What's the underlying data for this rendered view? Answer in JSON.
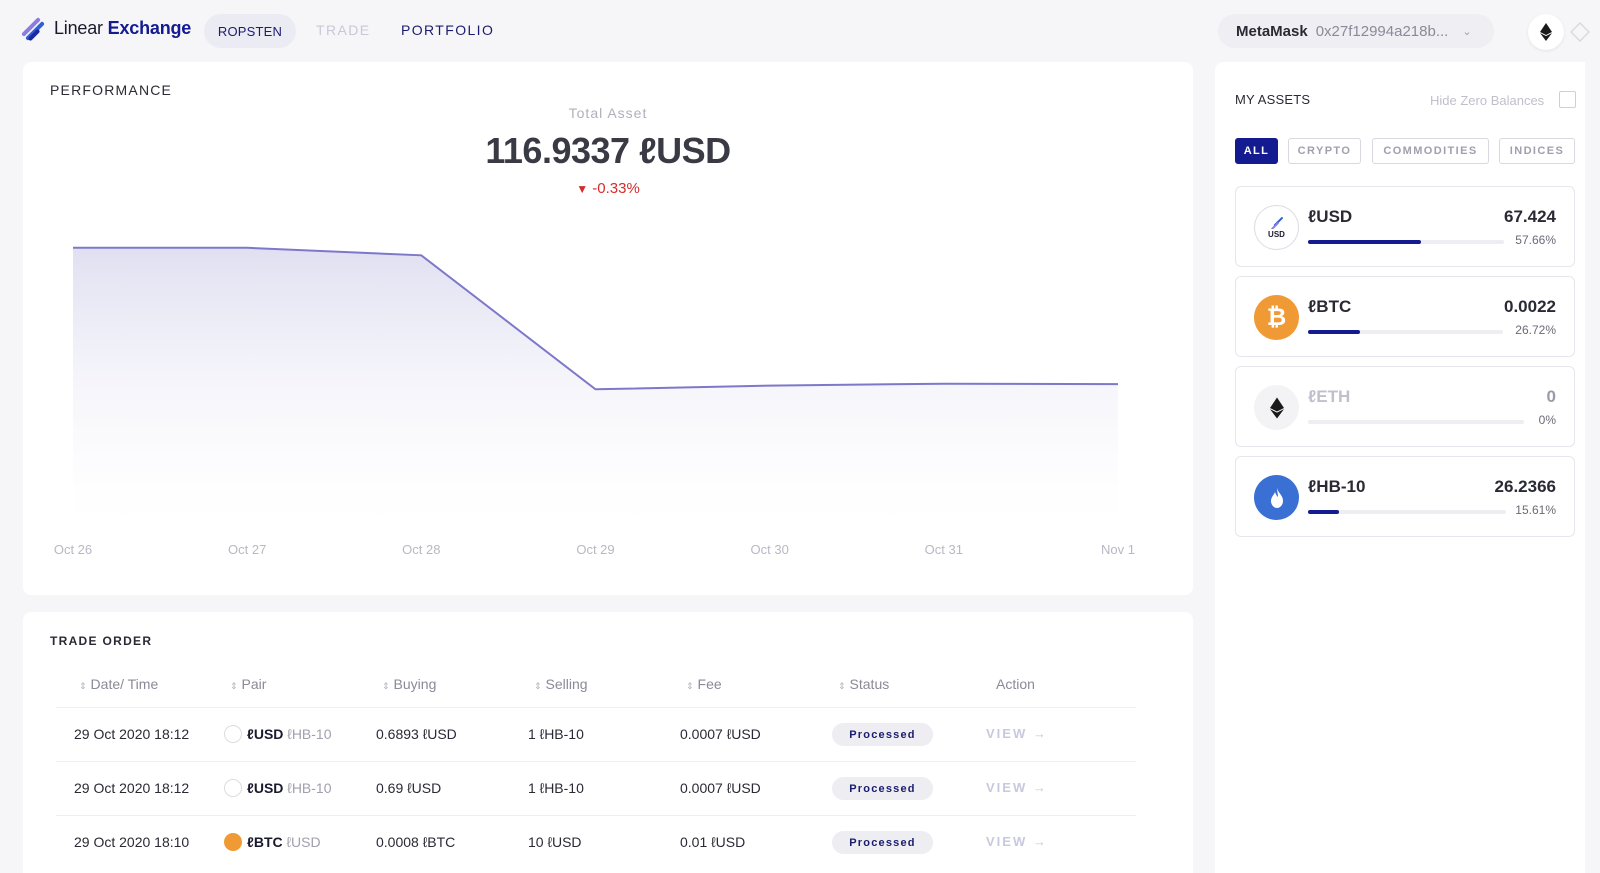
{
  "header": {
    "brand_light": "Linear",
    "brand_bold": "Exchange",
    "network": "ROPSTEN",
    "nav_trade": "TRADE",
    "nav_portfolio": "PORTFOLIO",
    "wallet_name": "MetaMask",
    "wallet_address": "0x27f12994a218b...",
    "network_icon": "ethereum-icon"
  },
  "performance": {
    "title": "PERFORMANCE",
    "total_label": "Total Asset",
    "total_value": "116.9337 ℓUSD",
    "change": "-0.33%",
    "change_icon": "triangle-down",
    "accent": "#7d78c9"
  },
  "chart_data": {
    "type": "area",
    "title": "",
    "xlabel": "",
    "ylabel": "",
    "categories": [
      "Oct 26",
      "Oct 27",
      "Oct 28",
      "Oct 29",
      "Oct 30",
      "Oct 31",
      "Nov 1"
    ],
    "series": [
      {
        "values": [
          117.3,
          117.3,
          117.28,
          116.92,
          116.93,
          116.935,
          116.934
        ]
      }
    ],
    "ylim": [
      116.55,
      117.45
    ],
    "grid": false,
    "y_axis_visible": false,
    "line_color": "#7d78c9"
  },
  "orders": {
    "title": "TRADE ORDER",
    "columns": [
      "Date/ Time",
      "Pair",
      "Buying",
      "Selling",
      "Fee",
      "Status",
      "Action"
    ],
    "rows": [
      {
        "date": "29 Oct 2020 18:12",
        "base": "ℓUSD",
        "quote": "ℓHB-10",
        "icon": "usd-icon",
        "buying": "0.6893 ℓUSD",
        "selling": "1 ℓHB-10",
        "fee": "0.0007 ℓUSD",
        "status": "Processed",
        "action": "VIEW"
      },
      {
        "date": "29 Oct 2020 18:12",
        "base": "ℓUSD",
        "quote": "ℓHB-10",
        "icon": "usd-icon",
        "buying": "0.69 ℓUSD",
        "selling": "1 ℓHB-10",
        "fee": "0.0007 ℓUSD",
        "status": "Processed",
        "action": "VIEW"
      },
      {
        "date": "29 Oct 2020 18:10",
        "base": "ℓBTC",
        "quote": "ℓUSD",
        "icon": "bitcoin-icon",
        "buying": "0.0008 ℓBTC",
        "selling": "10 ℓUSD",
        "fee": "0.01 ℓUSD",
        "status": "Processed",
        "action": "VIEW"
      }
    ]
  },
  "assets": {
    "title": "MY ASSETS",
    "hide_zero": "Hide Zero Balances",
    "filters": [
      "ALL",
      "CRYPTO",
      "COMMODITIES",
      "INDICES"
    ],
    "active_filter": "ALL",
    "usd_badge": "USD",
    "items": [
      {
        "name": "ℓUSD",
        "amount": "67.424",
        "percent": "57.66%",
        "share": 0.5766,
        "icon": "usd-icon",
        "color": "#ffffff"
      },
      {
        "name": "ℓBTC",
        "amount": "0.0022",
        "percent": "26.72%",
        "share": 0.2672,
        "icon": "bitcoin-icon",
        "color": "#f09a36"
      },
      {
        "name": "ℓETH",
        "amount": "0",
        "percent": "0%",
        "share": 0,
        "icon": "ethereum-icon",
        "color": "#f3f3f5"
      },
      {
        "name": "ℓHB-10",
        "amount": "26.2366",
        "percent": "15.61%",
        "share": 0.1561,
        "icon": "huobi-flame-icon",
        "color": "#3a6fd4"
      }
    ]
  }
}
